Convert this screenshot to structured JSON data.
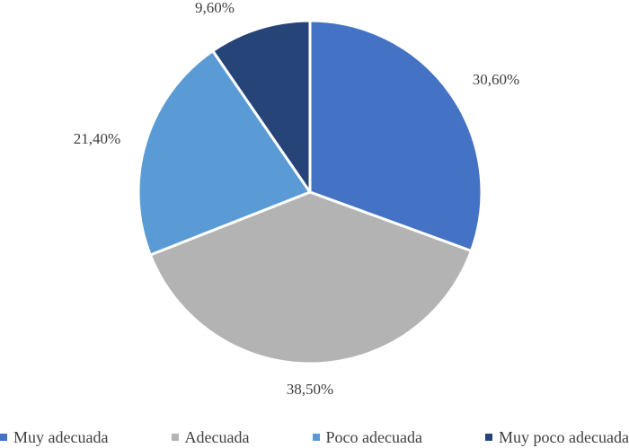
{
  "chart_data": {
    "type": "pie",
    "title": "",
    "start_angle_deg": 0,
    "direction": "clockwise",
    "slices": [
      {
        "label": "Muy adecuada",
        "value": 30.6,
        "display": "30,60%",
        "color": "#4472C4"
      },
      {
        "label": "Adecuada",
        "value": 38.5,
        "display": "38,50%",
        "color": "#B3B3B3"
      },
      {
        "label": "Poco adecuada",
        "value": 21.4,
        "display": "21,40%",
        "color": "#5B9BD5"
      },
      {
        "label": "Muy poco adecuada",
        "value": 9.6,
        "display": "9,60%",
        "color": "#264478"
      }
    ],
    "legend": {
      "position": "bottom"
    }
  },
  "legend": {
    "items": [
      "Muy adecuada",
      "Adecuada",
      "Poco adecuada",
      "Muy poco adecuada"
    ]
  }
}
